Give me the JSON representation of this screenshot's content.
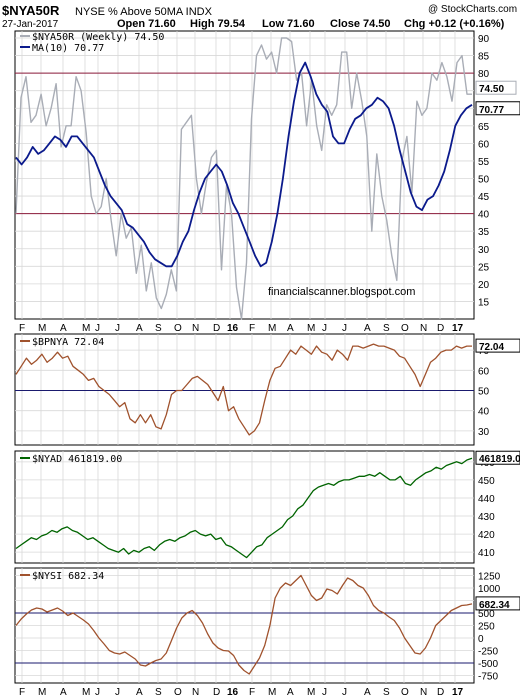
{
  "header": {
    "symbol": "$NYA50R",
    "description": "NYSE % Above 50MA INDX",
    "date": "27-Jan-2017",
    "open_label": "Open 71.60",
    "high_label": "High 79.54",
    "low_label": "Low 71.60",
    "close_label": "Close 74.50",
    "chg_label": "Chg +0.12 (+0.16%)",
    "brand": "@ StockCharts.com"
  },
  "watermark": "financialscanner.blogspot.com",
  "colors": {
    "gray_line": "#a9adb6",
    "ma_line": "#0b1a8c",
    "brown_line": "#a0522d",
    "green_line": "#006400",
    "ref_line_red": "#8b1a3a",
    "ref_line_navy": "#1a1a6e",
    "grid": "#d8d8d8"
  },
  "months": [
    "F",
    "M",
    "A",
    "M",
    "J",
    "J",
    "A",
    "S",
    "O",
    "N",
    "D",
    "16",
    "F",
    "M",
    "A",
    "M",
    "J",
    "J",
    "A",
    "S",
    "O",
    "N",
    "D",
    "17"
  ],
  "chart_data": [
    {
      "type": "line",
      "title": "$NYA50R",
      "yticks": [
        15,
        20,
        25,
        30,
        35,
        40,
        45,
        50,
        55,
        60,
        65,
        70,
        75,
        80,
        85,
        90
      ],
      "ylim": [
        10,
        92
      ],
      "reference_lines": [
        80,
        40
      ],
      "series": [
        {
          "name": "$NYA50R (Weekly) 74.50",
          "color": "#a9adb6",
          "last_label": "74.50",
          "values": [
            40,
            73,
            79,
            66,
            68,
            74,
            65,
            70,
            77,
            59,
            65,
            65,
            79,
            75,
            63,
            45,
            40,
            42,
            50,
            38,
            28,
            40,
            33,
            36,
            23,
            31,
            18,
            26,
            16,
            13,
            17,
            24,
            18,
            64,
            66,
            68,
            50,
            40,
            49,
            56,
            58,
            24,
            48,
            40,
            19,
            10,
            26,
            67,
            85,
            88,
            84,
            86,
            80,
            90,
            90,
            89,
            78,
            80,
            65,
            78,
            65,
            58,
            71,
            68,
            71,
            86,
            86,
            70,
            80,
            72,
            62,
            35,
            57,
            45,
            38,
            28,
            21,
            55,
            62,
            46,
            72,
            68,
            70,
            80,
            78,
            83,
            79,
            72,
            83,
            85,
            74,
            74
          ]
        },
        {
          "name": "MA(10) 70.77",
          "color": "#0b1a8c",
          "last_label": "70.77",
          "values": [
            56,
            54,
            56,
            59,
            57,
            58,
            60,
            62,
            61,
            59,
            62,
            62,
            60,
            58,
            56,
            52,
            48,
            45,
            43,
            41,
            37,
            36,
            34,
            32,
            29,
            27,
            26,
            25,
            25,
            28,
            32,
            35,
            41,
            46,
            50,
            52,
            54,
            52,
            48,
            43,
            40,
            36,
            32,
            28,
            25,
            26,
            32,
            40,
            50,
            62,
            72,
            80,
            83,
            79,
            74,
            71,
            69,
            62,
            60,
            60,
            64,
            67,
            68,
            70,
            71,
            73,
            72,
            70,
            65,
            58,
            52,
            46,
            42,
            41,
            44,
            45,
            48,
            52,
            58,
            65,
            68,
            70,
            71
          ]
        }
      ]
    },
    {
      "type": "line",
      "title": "$BPNYA 72.04",
      "yticks": [
        30,
        40,
        50,
        60,
        70
      ],
      "ylim": [
        23,
        78
      ],
      "reference_lines": [
        50
      ],
      "series": [
        {
          "name": "$BPNYA 72.04",
          "color": "#a0522d",
          "last_label": "72.04",
          "values": [
            58,
            62,
            66,
            63,
            65,
            68,
            64,
            66,
            69,
            66,
            67,
            62,
            60,
            58,
            55,
            56,
            52,
            50,
            48,
            45,
            42,
            44,
            36,
            34,
            38,
            34,
            38,
            32,
            31,
            38,
            48,
            50,
            50,
            53,
            56,
            57,
            55,
            53,
            49,
            45,
            52,
            40,
            42,
            36,
            32,
            28,
            30,
            34,
            45,
            55,
            61,
            62,
            66,
            70,
            68,
            72,
            70,
            68,
            72,
            69,
            68,
            65,
            70,
            68,
            65,
            72,
            72,
            71,
            72,
            73,
            72,
            72,
            71,
            70,
            67,
            66,
            62,
            58,
            52,
            58,
            64,
            66,
            69,
            70,
            70,
            72,
            71,
            72,
            72
          ]
        }
      ]
    },
    {
      "type": "line",
      "title": "$NYAD 461819.00",
      "yticks": [
        410,
        420,
        430,
        440,
        450,
        460
      ],
      "ylim": [
        404,
        466
      ],
      "series": [
        {
          "name": "$NYAD 461819.00",
          "color": "#006400",
          "last_label": "461819.0",
          "values": [
            412,
            414,
            416,
            418,
            417,
            419,
            420,
            422,
            421,
            423,
            424,
            422,
            421,
            419,
            417,
            418,
            416,
            414,
            412,
            411,
            410,
            412,
            409,
            411,
            410,
            412,
            413,
            411,
            414,
            416,
            417,
            416,
            418,
            419,
            421,
            422,
            420,
            419,
            420,
            417,
            418,
            414,
            413,
            411,
            409,
            407,
            410,
            413,
            414,
            418,
            420,
            422,
            424,
            428,
            430,
            434,
            436,
            440,
            444,
            446,
            447,
            448,
            447,
            449,
            450,
            450,
            451,
            452,
            452,
            453,
            452,
            454,
            452,
            450,
            450,
            452,
            448,
            447,
            450,
            452,
            454,
            455,
            457,
            456,
            458,
            459,
            460,
            459,
            461,
            462
          ]
        }
      ]
    },
    {
      "type": "line",
      "title": "$NYSI 682.34",
      "yticks": [
        1250,
        1000,
        750,
        500,
        250,
        0,
        -250,
        -500,
        -750
      ],
      "ylim": [
        -900,
        1400
      ],
      "reference_lines": [
        500,
        -500
      ],
      "series": [
        {
          "name": "$NYSI 682.34",
          "color": "#a0522d",
          "last_label": "682.34",
          "values": [
            250,
            380,
            480,
            560,
            600,
            580,
            520,
            560,
            600,
            540,
            450,
            500,
            430,
            360,
            280,
            150,
            0,
            -120,
            -250,
            -300,
            -320,
            -280,
            -350,
            -420,
            -540,
            -560,
            -500,
            -450,
            -420,
            -300,
            -50,
            200,
            400,
            500,
            550,
            450,
            300,
            80,
            -100,
            -200,
            -250,
            -260,
            -350,
            -540,
            -650,
            -720,
            -560,
            -400,
            -150,
            250,
            800,
            1000,
            1100,
            1050,
            1150,
            1250,
            1050,
            850,
            750,
            800,
            980,
            950,
            880,
            1050,
            1200,
            1150,
            1050,
            1000,
            850,
            650,
            550,
            500,
            420,
            350,
            200,
            0,
            -150,
            -300,
            -320,
            -200,
            0,
            250,
            350,
            450,
            550,
            600,
            650,
            660,
            682
          ]
        }
      ]
    }
  ]
}
